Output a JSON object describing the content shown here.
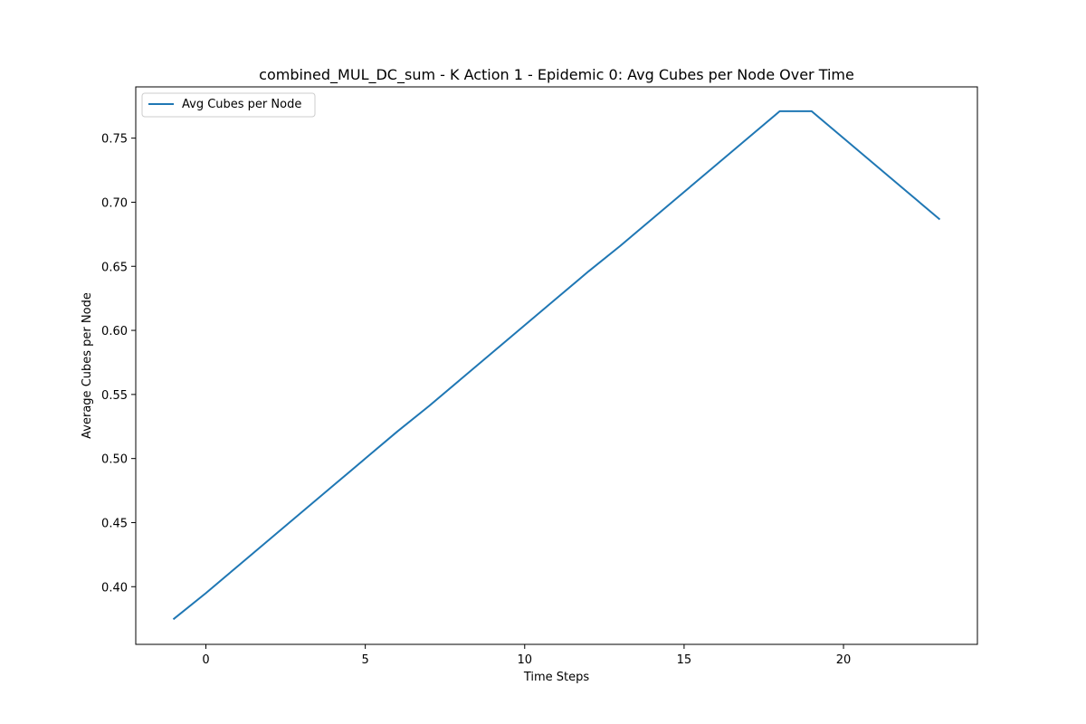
{
  "chart_data": {
    "type": "line",
    "title": "combined_MUL_DC_sum - K Action 1 - Epidemic 0: Avg Cubes per Node Over Time",
    "xlabel": "Time Steps",
    "ylabel": "Average Cubes per Node",
    "xlim": [
      -2.2,
      24.2
    ],
    "ylim": [
      0.355,
      0.79
    ],
    "x_ticks": [
      0,
      5,
      10,
      15,
      20
    ],
    "y_ticks": [
      0.4,
      0.45,
      0.5,
      0.55,
      0.6,
      0.65,
      0.7,
      0.75
    ],
    "x_tick_labels": [
      "0",
      "5",
      "10",
      "15",
      "20"
    ],
    "y_tick_labels": [
      "0.40",
      "0.45",
      "0.50",
      "0.55",
      "0.60",
      "0.65",
      "0.70",
      "0.75"
    ],
    "grid": false,
    "legend_position": "top-left",
    "series": [
      {
        "name": "Avg Cubes per Node",
        "color": "#1f77b4",
        "x": [
          -1,
          0,
          1,
          2,
          3,
          4,
          5,
          6,
          7,
          8,
          9,
          10,
          11,
          12,
          13,
          14,
          15,
          16,
          17,
          18,
          19,
          20,
          21,
          22,
          23
        ],
        "y": [
          0.375,
          0.395,
          0.416,
          0.437,
          0.458,
          0.479,
          0.5,
          0.521,
          0.541,
          0.562,
          0.583,
          0.604,
          0.625,
          0.646,
          0.666,
          0.687,
          0.708,
          0.729,
          0.75,
          0.771,
          0.771,
          0.75,
          0.729,
          0.708,
          0.687
        ]
      }
    ]
  }
}
